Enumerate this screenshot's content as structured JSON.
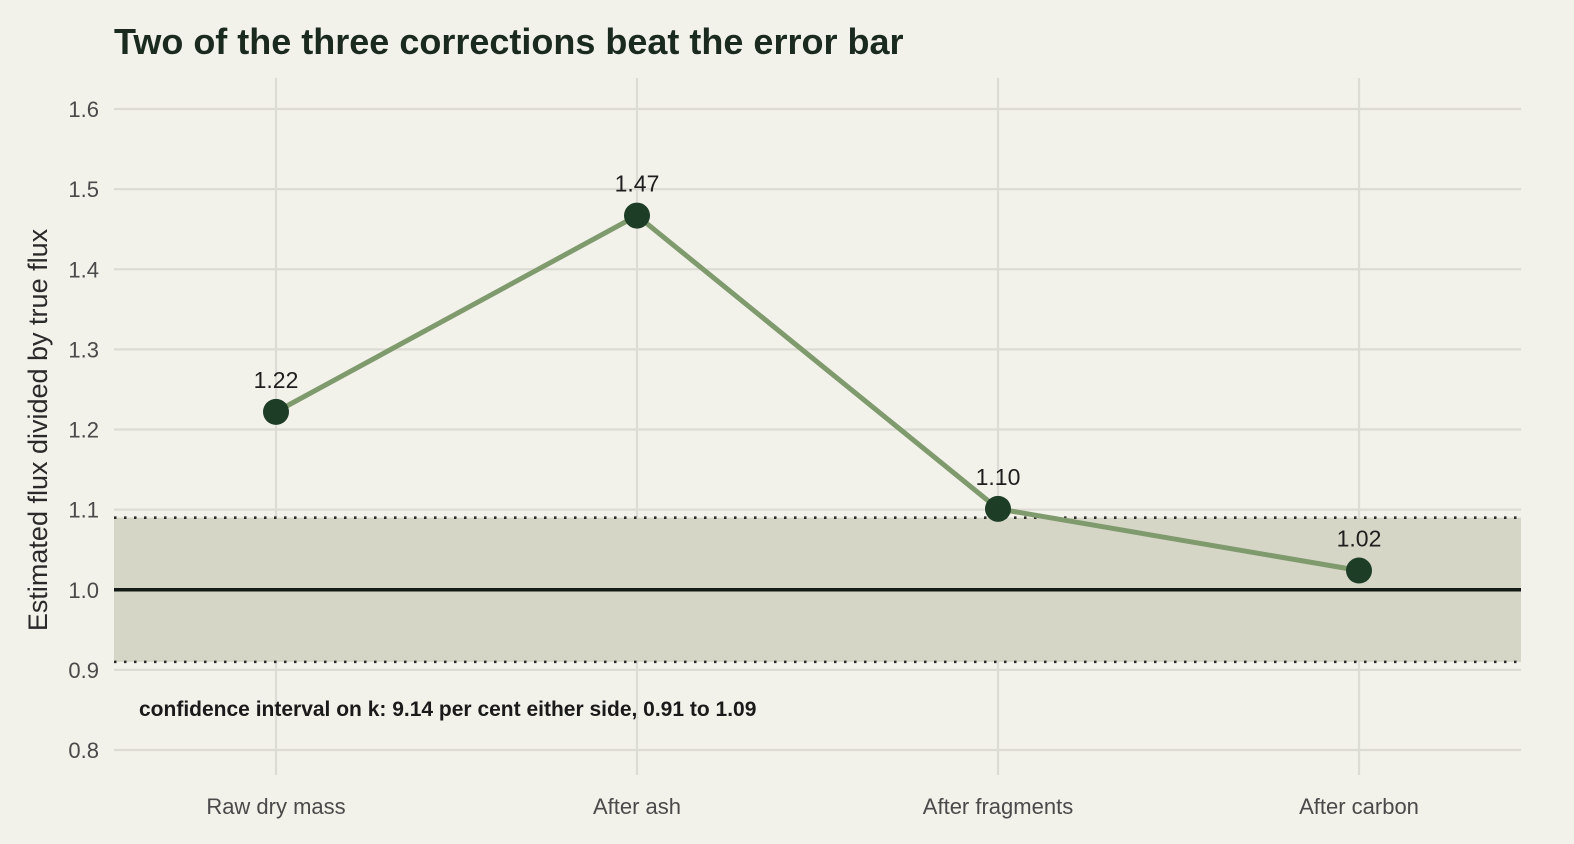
{
  "chart_data": {
    "type": "line",
    "title": "Two of the three corrections beat the error bar",
    "xlabel": "",
    "ylabel": "Estimated flux divided by true flux",
    "categories": [
      "Raw dry mass",
      "After ash",
      "After fragments",
      "After carbon"
    ],
    "values": [
      1.222,
      1.467,
      1.101,
      1.024
    ],
    "data_labels": [
      "1.22",
      "1.47",
      "1.10",
      "1.02"
    ],
    "ylim": [
      0.76,
      1.64
    ],
    "yticks": [
      0.8,
      0.9,
      1.0,
      1.1,
      1.2,
      1.3,
      1.4,
      1.5,
      1.6
    ],
    "ytick_labels": [
      "0.8",
      "0.9",
      "1.0",
      "1.1",
      "1.2",
      "1.3",
      "1.4",
      "1.5",
      "1.6"
    ],
    "reference_line": 1.0,
    "band": {
      "low": 0.91,
      "high": 1.09,
      "note": "confidence interval on k: 9.14 per cent either side, 0.91 to 1.09"
    },
    "grid": true,
    "legend": "none",
    "colors": {
      "background": "#f2f1ea",
      "grid": "#dddcd4",
      "band": "#d6d6c6",
      "line": "#7f9a6d",
      "point": "#1d3d27",
      "reference": "#141a16"
    }
  }
}
